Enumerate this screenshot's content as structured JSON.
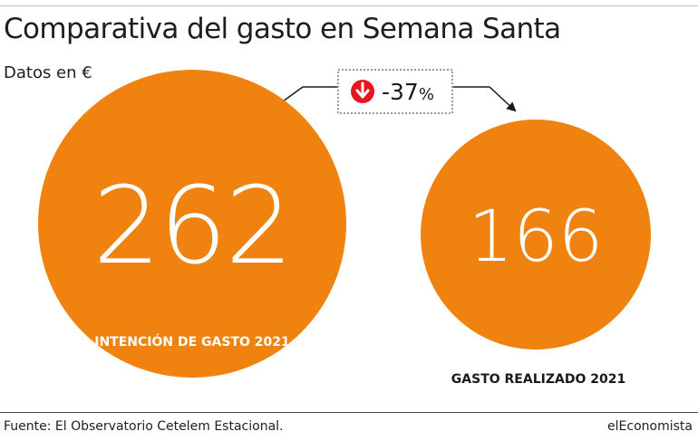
{
  "header": {
    "title": "Comparativa del gasto en Semana Santa",
    "subtitle": "Datos en €"
  },
  "chart_data": {
    "type": "bubble",
    "title": "Comparativa del gasto en Semana Santa",
    "subtitle": "Datos en €",
    "categories": [
      "INTENCIÓN DE GASTO 2021",
      "GASTO REALIZADO 2021"
    ],
    "values": [
      262,
      166
    ],
    "value_labels": [
      "262",
      "166"
    ],
    "change_label": "-37%",
    "change_value": "-37",
    "change_unit": "%",
    "colors": {
      "bubble": "#F0830F",
      "bubble_text": "#ffffff",
      "category_label_outside": "#1a1a1a",
      "change_icon": "#E3171D"
    }
  },
  "footer": {
    "source": "Fuente: El Observatorio Cetelem Estacional.",
    "brand": "elEconomista"
  }
}
